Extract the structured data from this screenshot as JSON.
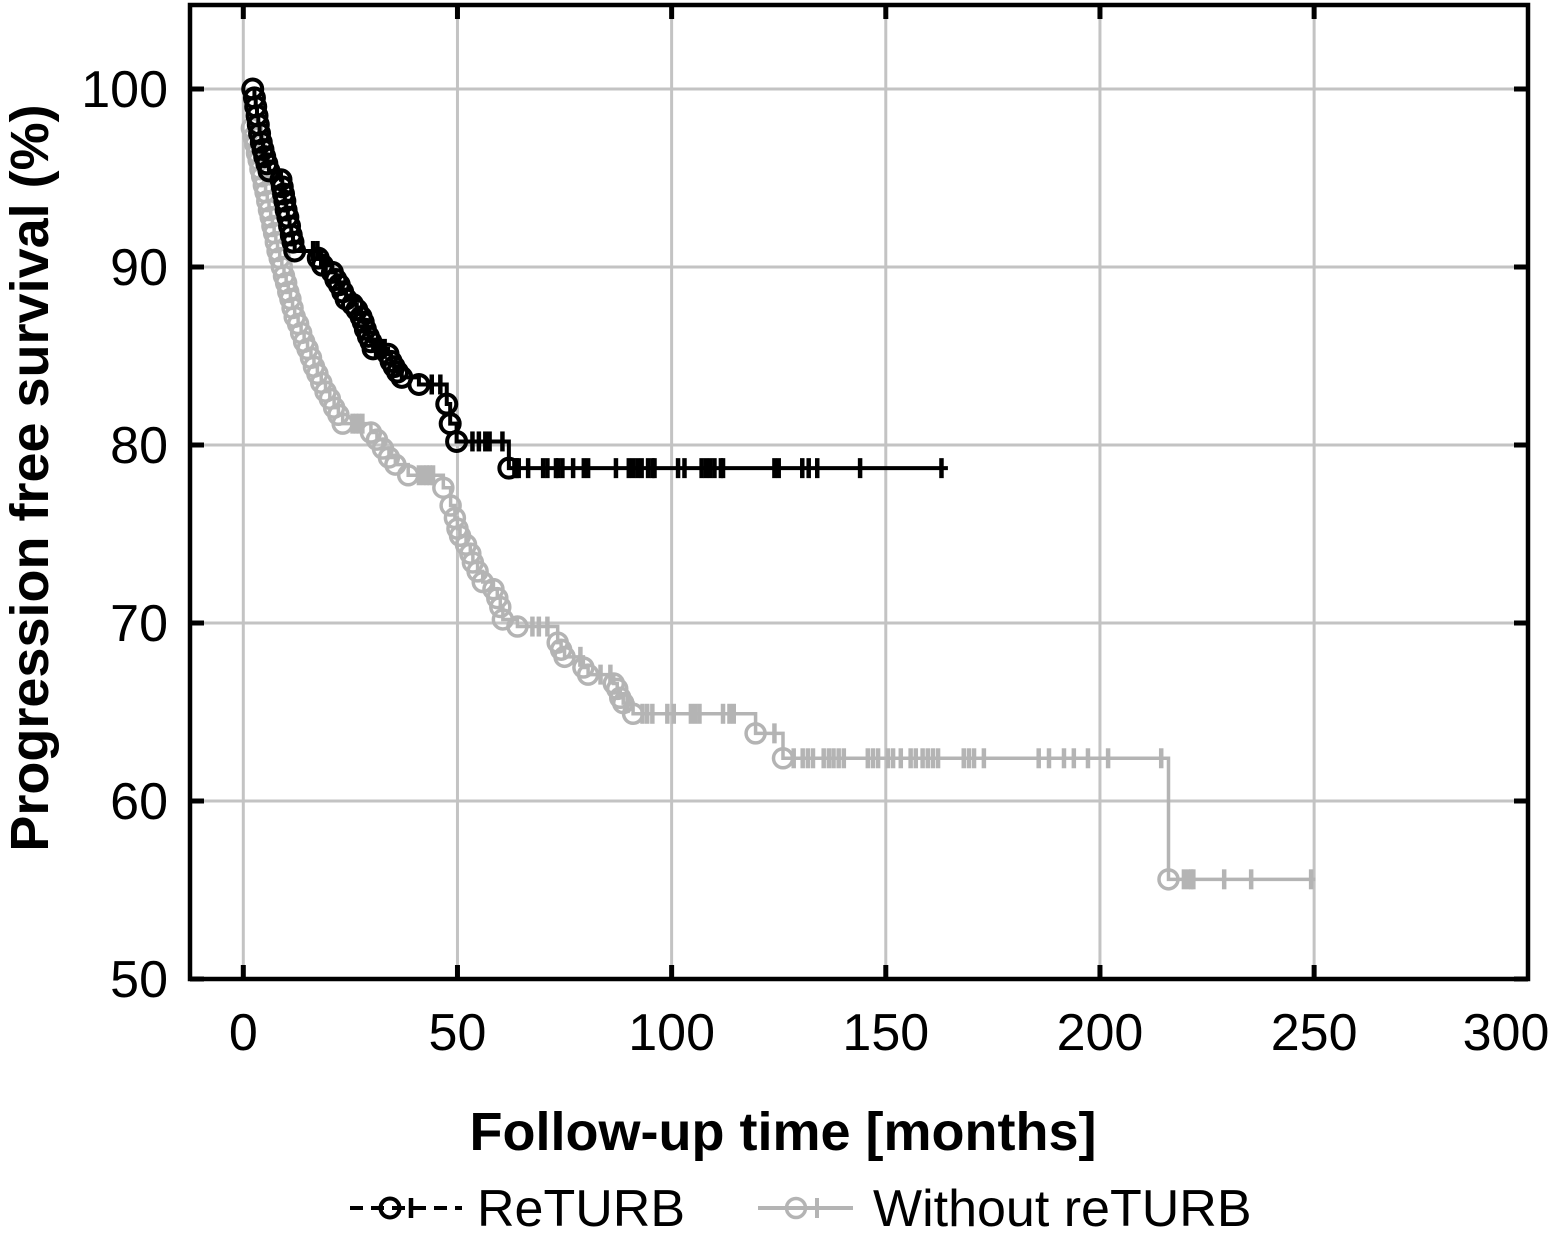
{
  "figure": {
    "background_color": "#ffffff",
    "plot_border_color": "#000000",
    "grid_color": "#c3c3c3"
  },
  "axes": {
    "xlabel": "Follow-up time [months]",
    "ylabel": "Progression free survival (%)",
    "x_ticks": [
      0,
      50,
      100,
      150,
      200,
      250,
      300
    ],
    "y_ticks": [
      50,
      60,
      70,
      80,
      90,
      100
    ]
  },
  "legend": {
    "items": [
      {
        "label": "ReTURB",
        "color": "#000000",
        "line_style": "dashed"
      },
      {
        "label": "Without reTURB",
        "color": "#b4b4b4",
        "line_style": "solid"
      }
    ]
  },
  "chart_data": {
    "type": "line",
    "subtype": "kaplan-meier-step",
    "title": "",
    "xlabel": "Follow-up time [months]",
    "ylabel": "Progression free survival (%)",
    "xlim": [
      -13,
      300
    ],
    "ylim": [
      50,
      104.8
    ],
    "grid": true,
    "legend_position": "bottom",
    "series": [
      {
        "name": "Without reTURB",
        "color": "#b4b4b4",
        "marker": "open-circle",
        "censor_marker": "vertical-tick",
        "events": [
          [
            2.0,
            97.8
          ],
          [
            2.4,
            97.3
          ],
          [
            2.8,
            96.9
          ],
          [
            3.2,
            96.4
          ],
          [
            3.6,
            96.0
          ],
          [
            4.0,
            95.5
          ],
          [
            4.4,
            95.1
          ],
          [
            4.8,
            94.6
          ],
          [
            5.2,
            94.2
          ],
          [
            5.6,
            93.7
          ],
          [
            6.0,
            93.2
          ],
          [
            6.4,
            92.8
          ],
          [
            6.8,
            92.3
          ],
          [
            7.2,
            91.9
          ],
          [
            7.6,
            91.4
          ],
          [
            8.0,
            90.9
          ],
          [
            8.5,
            90.5
          ],
          [
            9.0,
            90.0
          ],
          [
            9.5,
            89.5
          ],
          [
            10.0,
            89.1
          ],
          [
            10.5,
            88.6
          ],
          [
            11.0,
            88.2
          ],
          [
            11.5,
            87.7
          ],
          [
            12.0,
            87.2
          ],
          [
            12.8,
            86.8
          ],
          [
            13.5,
            86.3
          ],
          [
            14.2,
            85.8
          ],
          [
            15.0,
            85.4
          ],
          [
            15.8,
            84.9
          ],
          [
            16.5,
            84.4
          ],
          [
            17.3,
            84.0
          ],
          [
            18.2,
            83.5
          ],
          [
            19.2,
            83.0
          ],
          [
            20.2,
            82.6
          ],
          [
            21.2,
            82.1
          ],
          [
            22.2,
            81.7
          ],
          [
            23.2,
            81.2
          ],
          [
            29.8,
            80.7
          ],
          [
            31.2,
            80.3
          ],
          [
            32.6,
            79.8
          ],
          [
            34.0,
            79.3
          ],
          [
            35.5,
            78.9
          ],
          [
            38.5,
            78.3
          ],
          [
            46.7,
            77.6
          ],
          [
            48.4,
            76.6
          ],
          [
            49.4,
            75.9
          ],
          [
            50.0,
            75.3
          ],
          [
            50.6,
            74.9
          ],
          [
            52.0,
            74.4
          ],
          [
            53.0,
            73.9
          ],
          [
            53.6,
            73.4
          ],
          [
            54.7,
            72.9
          ],
          [
            55.9,
            72.3
          ],
          [
            58.4,
            71.9
          ],
          [
            59.3,
            71.4
          ],
          [
            60.0,
            70.9
          ],
          [
            60.6,
            70.2
          ],
          [
            64.0,
            69.8
          ],
          [
            73.4,
            68.9
          ],
          [
            74.2,
            68.5
          ],
          [
            75.0,
            68.1
          ],
          [
            79.4,
            67.5
          ],
          [
            80.5,
            67.1
          ],
          [
            86.5,
            66.6
          ],
          [
            87.3,
            66.3
          ],
          [
            88.0,
            65.8
          ],
          [
            88.7,
            65.5
          ],
          [
            91.0,
            64.9
          ],
          [
            119.6,
            63.8
          ],
          [
            126.0,
            62.4
          ],
          [
            216.0,
            55.6
          ]
        ],
        "censored_times": [
          25.5,
          26.3,
          27.0,
          27.8,
          41.0,
          42.0,
          42.8,
          43.5,
          44.3,
          67.5,
          69.0,
          71.0,
          78.7,
          83.4,
          85.7,
          89.7,
          93.2,
          94.3,
          95.5,
          99.0,
          100.5,
          104.5,
          105.5,
          106.5,
          112.0,
          113.5,
          114.5,
          124.0,
          128.5,
          130.6,
          131.8,
          133.0,
          135.5,
          136.7,
          137.8,
          139.0,
          140.2,
          145.8,
          147.0,
          148.2,
          150.5,
          151.7,
          153.5,
          155.8,
          157.0,
          158.6,
          159.8,
          161.0,
          162.2,
          168.2,
          169.4,
          170.6,
          172.9,
          185.7,
          188.1,
          191.6,
          193.9,
          197.2,
          201.9,
          214.3,
          219.6,
          220.6,
          221.3,
          221.8,
          229.0,
          235.3,
          249.3
        ],
        "end_time": 250.3
      },
      {
        "name": "ReTURB",
        "color": "#000000",
        "marker": "open-circle",
        "censor_marker": "vertical-tick",
        "events": [
          [
            2.2,
            100.0
          ],
          [
            2.6,
            99.5
          ],
          [
            2.9,
            99.0
          ],
          [
            3.2,
            98.5
          ],
          [
            3.5,
            98.0
          ],
          [
            3.8,
            97.5
          ],
          [
            4.2,
            97.0
          ],
          [
            4.6,
            96.6
          ],
          [
            5.0,
            96.2
          ],
          [
            5.5,
            95.8
          ],
          [
            6.0,
            95.4
          ],
          [
            8.8,
            94.9
          ],
          [
            9.1,
            94.5
          ],
          [
            9.4,
            94.1
          ],
          [
            9.7,
            93.7
          ],
          [
            10.0,
            93.2
          ],
          [
            10.4,
            92.8
          ],
          [
            10.8,
            92.3
          ],
          [
            11.2,
            91.8
          ],
          [
            11.6,
            91.4
          ],
          [
            12.0,
            90.9
          ],
          [
            17.5,
            90.5
          ],
          [
            18.5,
            90.1
          ],
          [
            20.8,
            89.7
          ],
          [
            21.6,
            89.3
          ],
          [
            22.4,
            89.0
          ],
          [
            23.2,
            88.6
          ],
          [
            24.0,
            88.2
          ],
          [
            25.5,
            87.9
          ],
          [
            26.5,
            87.6
          ],
          [
            27.5,
            87.2
          ],
          [
            28.0,
            86.9
          ],
          [
            28.5,
            86.5
          ],
          [
            29.2,
            86.1
          ],
          [
            29.8,
            85.8
          ],
          [
            30.3,
            85.4
          ],
          [
            33.8,
            85.1
          ],
          [
            34.5,
            84.7
          ],
          [
            35.2,
            84.4
          ],
          [
            36.0,
            84.1
          ],
          [
            37.0,
            83.8
          ],
          [
            41.0,
            83.4
          ],
          [
            47.5,
            82.3
          ],
          [
            48.3,
            81.2
          ],
          [
            49.8,
            80.2
          ],
          [
            62.0,
            78.7
          ]
        ],
        "censored_times": [
          16.3,
          17.3,
          18.2,
          19.2,
          31.0,
          32.0,
          33.0,
          44.0,
          46.0,
          53.5,
          55.0,
          56.5,
          57.5,
          60.5,
          63.3,
          63.8,
          64.3,
          66.5,
          70.0,
          71.0,
          73.0,
          73.5,
          74.5,
          77.0,
          79.5,
          80.5,
          87.0,
          90.0,
          91.0,
          92.0,
          93.0,
          94.5,
          95.5,
          96.0,
          101.5,
          103.0,
          107.0,
          108.0,
          109.0,
          110.0,
          111.5,
          112.0,
          124.0,
          125.0,
          130.5,
          132.0,
          134.0,
          144.0,
          163.0
        ],
        "end_time": 164.5
      }
    ]
  }
}
